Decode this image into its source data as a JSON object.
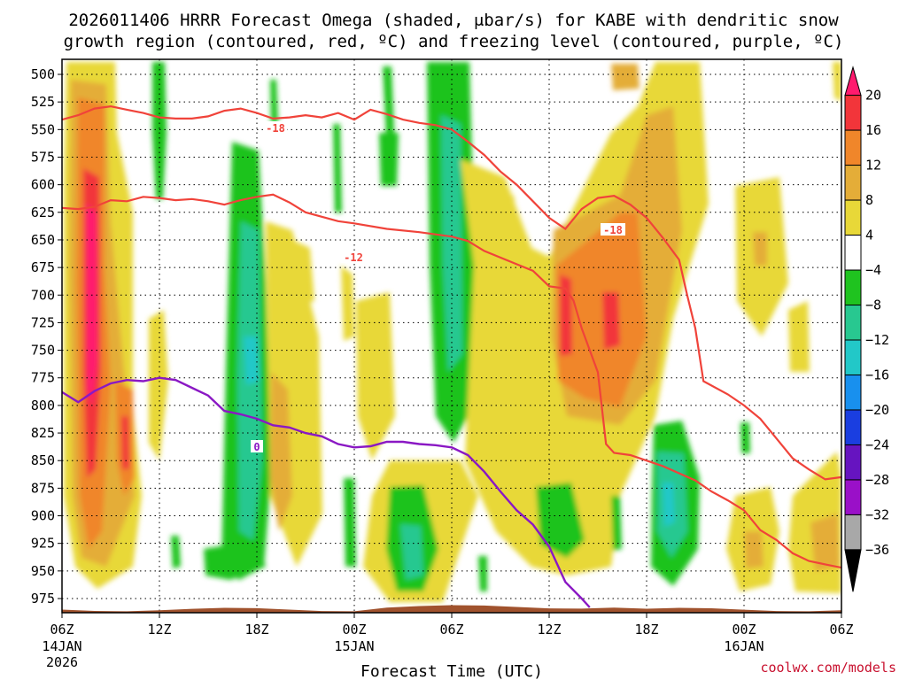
{
  "chart_data": {
    "type": "time-height cross-section (filled contour + line contours)",
    "title_line1": "2026011406 HRRR Forecast Omega (shaded, μbar/s) for KABE with dendritic snow",
    "title_line2": "growth region (contoured, red, ºC) and freezing level (contoured, purple, ºC)",
    "xlabel": "Forecast Time (UTC)",
    "credit": "coolwx.com/models",
    "x_range_hours": [
      0,
      48
    ],
    "y_range_hPa": [
      990,
      495
    ],
    "y_ticks": [
      500,
      525,
      550,
      575,
      600,
      625,
      650,
      675,
      700,
      725,
      750,
      775,
      800,
      825,
      850,
      875,
      900,
      925,
      950,
      975
    ],
    "x_ticks": [
      {
        "h": 0,
        "l1": "06Z",
        "l2": "14JAN",
        "l3": "2026"
      },
      {
        "h": 6,
        "l1": "12Z",
        "l2": "",
        "l3": ""
      },
      {
        "h": 12,
        "l1": "18Z",
        "l2": "",
        "l3": ""
      },
      {
        "h": 18,
        "l1": "00Z",
        "l2": "15JAN",
        "l3": ""
      },
      {
        "h": 24,
        "l1": "06Z",
        "l2": "",
        "l3": ""
      },
      {
        "h": 30,
        "l1": "12Z",
        "l2": "",
        "l3": ""
      },
      {
        "h": 36,
        "l1": "18Z",
        "l2": "",
        "l3": ""
      },
      {
        "h": 42,
        "l1": "00Z",
        "l2": "16JAN",
        "l3": ""
      },
      {
        "h": 48,
        "l1": "06Z",
        "l2": "",
        "l3": ""
      }
    ],
    "colorbar": {
      "labels": [
        "20",
        "16",
        "12",
        "8",
        "4",
        "−4",
        "−8",
        "−12",
        "−16",
        "−20",
        "−24",
        "−28",
        "−32",
        "−36"
      ],
      "colors": [
        "#ff1a6e",
        "#f2353a",
        "#f0862a",
        "#e4ad38",
        "#e8d838",
        "#ffffff",
        "#1fc31f",
        "#28c890",
        "#22c8c8",
        "#1890ee",
        "#1a3ee0",
        "#6614c0",
        "#9a10c8",
        "#a8a8a8",
        "#000000"
      ]
    },
    "contour_labels": {
      "dgz_lower": "-12",
      "dgz_upper": "-18",
      "freezing": "0"
    },
    "dgz_minus12_line": [
      [
        0,
        621
      ],
      [
        1,
        622
      ],
      [
        2,
        620
      ],
      [
        3,
        614
      ],
      [
        4,
        615
      ],
      [
        5,
        611
      ],
      [
        6,
        612
      ],
      [
        7,
        614
      ],
      [
        8,
        613
      ],
      [
        9,
        615
      ],
      [
        10,
        618
      ],
      [
        11,
        614
      ],
      [
        12,
        611
      ],
      [
        13,
        609
      ],
      [
        14,
        616
      ],
      [
        15,
        625
      ],
      [
        17,
        633
      ],
      [
        18,
        635
      ],
      [
        20,
        640
      ],
      [
        22,
        643
      ],
      [
        24,
        647
      ],
      [
        25,
        651
      ],
      [
        26,
        660
      ],
      [
        28,
        672
      ],
      [
        29,
        678
      ],
      [
        30,
        692
      ],
      [
        31,
        694
      ],
      [
        31.5,
        705
      ],
      [
        32,
        730
      ],
      [
        33,
        770
      ],
      [
        33.5,
        835
      ],
      [
        34,
        843
      ],
      [
        35,
        845
      ],
      [
        37,
        855
      ],
      [
        39,
        868
      ],
      [
        40,
        878
      ],
      [
        41,
        886
      ],
      [
        42,
        895
      ],
      [
        43,
        913
      ],
      [
        44,
        922
      ],
      [
        45,
        934
      ],
      [
        46,
        941
      ],
      [
        47,
        944
      ],
      [
        48,
        947
      ]
    ],
    "dgz_minus18_line": [
      [
        0,
        541
      ],
      [
        1,
        537
      ],
      [
        2,
        531
      ],
      [
        3,
        529
      ],
      [
        4,
        532
      ],
      [
        5,
        535
      ],
      [
        6,
        539
      ],
      [
        7,
        540
      ],
      [
        8,
        540
      ],
      [
        9,
        538
      ],
      [
        10,
        533
      ],
      [
        11,
        531
      ],
      [
        12,
        535
      ],
      [
        13,
        540
      ],
      [
        14,
        539
      ],
      [
        15,
        537
      ],
      [
        16,
        539
      ],
      [
        17,
        535
      ],
      [
        18,
        541
      ],
      [
        19,
        532
      ],
      [
        20,
        536
      ],
      [
        21,
        541
      ],
      [
        22,
        544
      ],
      [
        23,
        546
      ],
      [
        24,
        550
      ],
      [
        25,
        561
      ],
      [
        26,
        573
      ],
      [
        27,
        588
      ],
      [
        28,
        600
      ],
      [
        29,
        615
      ],
      [
        30,
        630
      ],
      [
        31,
        640
      ],
      [
        32,
        622
      ],
      [
        33,
        612
      ],
      [
        34,
        610
      ],
      [
        35,
        618
      ],
      [
        36,
        630
      ],
      [
        37,
        648
      ],
      [
        38,
        668
      ],
      [
        38.5,
        700
      ],
      [
        39,
        730
      ],
      [
        39.5,
        778
      ],
      [
        41,
        790
      ],
      [
        42,
        800
      ],
      [
        43,
        812
      ],
      [
        44,
        830
      ],
      [
        45,
        848
      ],
      [
        46,
        858
      ],
      [
        47,
        867
      ],
      [
        48,
        865
      ]
    ],
    "freezing_line": [
      [
        0,
        788
      ],
      [
        1,
        797
      ],
      [
        2,
        787
      ],
      [
        3,
        780
      ],
      [
        4,
        777
      ],
      [
        5,
        778
      ],
      [
        6,
        775
      ],
      [
        7,
        777
      ],
      [
        8,
        784
      ],
      [
        9,
        791
      ],
      [
        10,
        805
      ],
      [
        11,
        808
      ],
      [
        12,
        812
      ],
      [
        13,
        818
      ],
      [
        14,
        820
      ],
      [
        15,
        825
      ],
      [
        16,
        828
      ],
      [
        17,
        835
      ],
      [
        18,
        838
      ],
      [
        19,
        837
      ],
      [
        20,
        833
      ],
      [
        21,
        833
      ],
      [
        22,
        835
      ],
      [
        23,
        836
      ],
      [
        24,
        838
      ],
      [
        25,
        845
      ],
      [
        26,
        860
      ],
      [
        27,
        878
      ],
      [
        28,
        895
      ],
      [
        29,
        908
      ],
      [
        30,
        928
      ],
      [
        31,
        960
      ],
      [
        32,
        975
      ],
      [
        32.5,
        983
      ]
    ],
    "terrain_hPa": 985
  }
}
